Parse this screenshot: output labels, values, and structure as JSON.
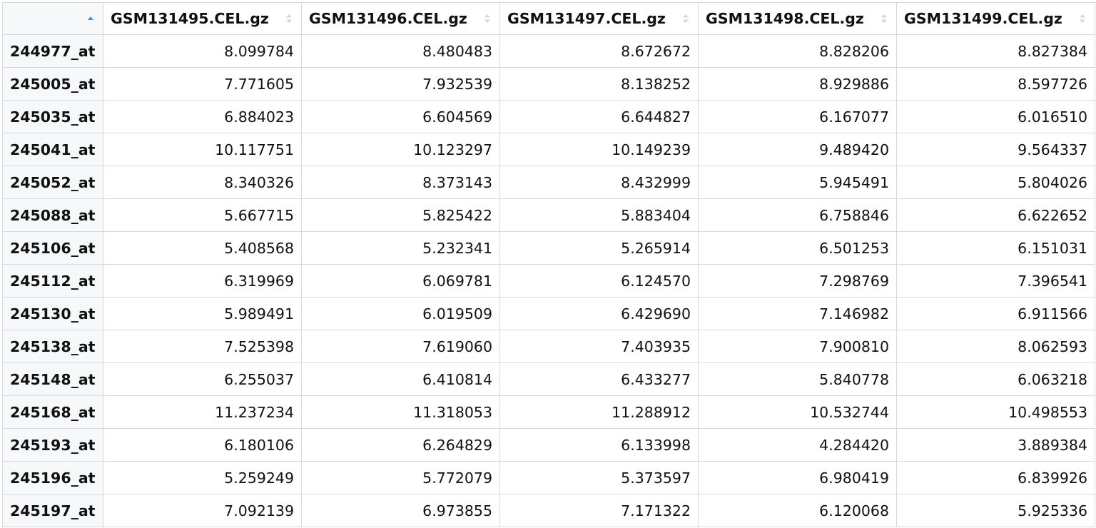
{
  "table": {
    "columns": [
      "GSM131495.CEL.gz",
      "GSM131496.CEL.gz",
      "GSM131497.CEL.gz",
      "GSM131498.CEL.gz",
      "GSM131499.CEL.gz"
    ],
    "sort": {
      "column": "row-names",
      "direction": "ascending"
    },
    "rows": [
      {
        "name": "244977_at",
        "values": [
          "8.099784",
          "8.480483",
          "8.672672",
          "8.828206",
          "8.827384"
        ]
      },
      {
        "name": "245005_at",
        "values": [
          "7.771605",
          "7.932539",
          "8.138252",
          "8.929886",
          "8.597726"
        ]
      },
      {
        "name": "245035_at",
        "values": [
          "6.884023",
          "6.604569",
          "6.644827",
          "6.167077",
          "6.016510"
        ]
      },
      {
        "name": "245041_at",
        "values": [
          "10.117751",
          "10.123297",
          "10.149239",
          "9.489420",
          "9.564337"
        ]
      },
      {
        "name": "245052_at",
        "values": [
          "8.340326",
          "8.373143",
          "8.432999",
          "5.945491",
          "5.804026"
        ]
      },
      {
        "name": "245088_at",
        "values": [
          "5.667715",
          "5.825422",
          "5.883404",
          "6.758846",
          "6.622652"
        ]
      },
      {
        "name": "245106_at",
        "values": [
          "5.408568",
          "5.232341",
          "5.265914",
          "6.501253",
          "6.151031"
        ]
      },
      {
        "name": "245112_at",
        "values": [
          "6.319969",
          "6.069781",
          "6.124570",
          "7.298769",
          "7.396541"
        ]
      },
      {
        "name": "245130_at",
        "values": [
          "5.989491",
          "6.019509",
          "6.429690",
          "7.146982",
          "6.911566"
        ]
      },
      {
        "name": "245138_at",
        "values": [
          "7.525398",
          "7.619060",
          "7.403935",
          "7.900810",
          "8.062593"
        ]
      },
      {
        "name": "245148_at",
        "values": [
          "6.255037",
          "6.410814",
          "6.433277",
          "5.840778",
          "6.063218"
        ]
      },
      {
        "name": "245168_at",
        "values": [
          "11.237234",
          "11.318053",
          "11.288912",
          "10.532744",
          "10.498553"
        ]
      },
      {
        "name": "245193_at",
        "values": [
          "6.180106",
          "6.264829",
          "6.133998",
          "4.284420",
          "3.889384"
        ]
      },
      {
        "name": "245196_at",
        "values": [
          "5.259249",
          "5.772079",
          "5.373597",
          "6.980419",
          "6.839926"
        ]
      },
      {
        "name": "245197_at",
        "values": [
          "7.092139",
          "6.973855",
          "7.171322",
          "6.120068",
          "5.925336"
        ]
      }
    ]
  },
  "colors": {
    "sort_active": "#3b8ee0",
    "sort_inactive": "#d2d5d9",
    "border": "#d6d9dc",
    "rowname_bg": "#f6f8f9"
  },
  "icons": {
    "sort_ascending": "sort-ascending-icon",
    "sort_neutral": "sort-both-icon"
  }
}
